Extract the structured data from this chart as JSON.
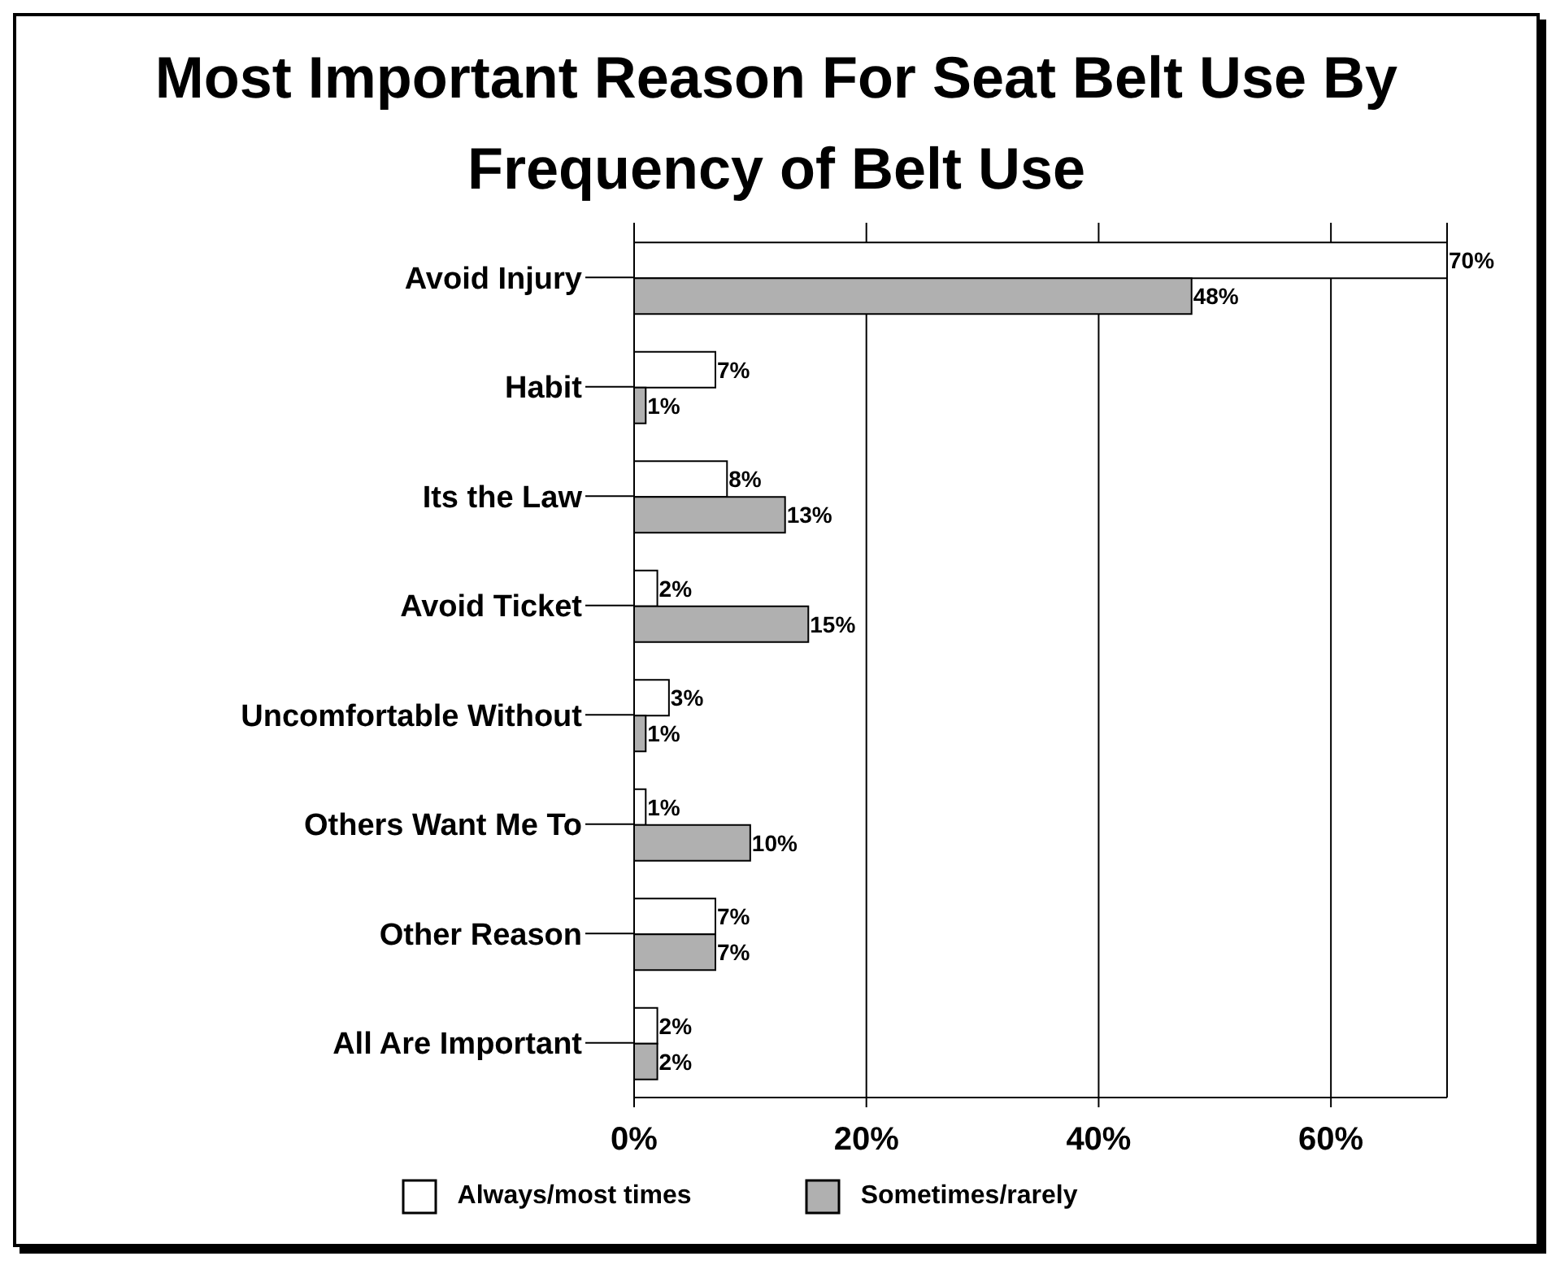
{
  "chart_data": {
    "type": "bar",
    "orientation": "horizontal",
    "title": "Most Important Reason For Seat Belt Use By Frequency of Belt Use",
    "categories": [
      "Avoid Injury",
      "Habit",
      "Its the Law",
      "Avoid Ticket",
      "Uncomfortable Without",
      "Others Want Me To",
      "Other Reason",
      "All Are Important"
    ],
    "series": [
      {
        "name": "Always/most times",
        "color": "#ffffff",
        "values": [
          70,
          7,
          8,
          2,
          3,
          1,
          7,
          2
        ],
        "value_labels": [
          "70%",
          "7%",
          "8%",
          "2%",
          "3%",
          "1%",
          "7%",
          "2%"
        ]
      },
      {
        "name": "Sometimes/rarely",
        "color": "#b0b0b0",
        "values": [
          48,
          1,
          13,
          15,
          1,
          10,
          7,
          2
        ],
        "value_labels": [
          "48%",
          "1%",
          "13%",
          "15%",
          "1%",
          "10%",
          "7%",
          "2%"
        ]
      }
    ],
    "xlim": [
      0,
      70
    ],
    "xticks": [
      {
        "value": 0,
        "label": "0%"
      },
      {
        "value": 20,
        "label": "20%"
      },
      {
        "value": 40,
        "label": "40%"
      },
      {
        "value": 60,
        "label": "60%"
      }
    ],
    "grid": "x",
    "legend": "bottom"
  }
}
